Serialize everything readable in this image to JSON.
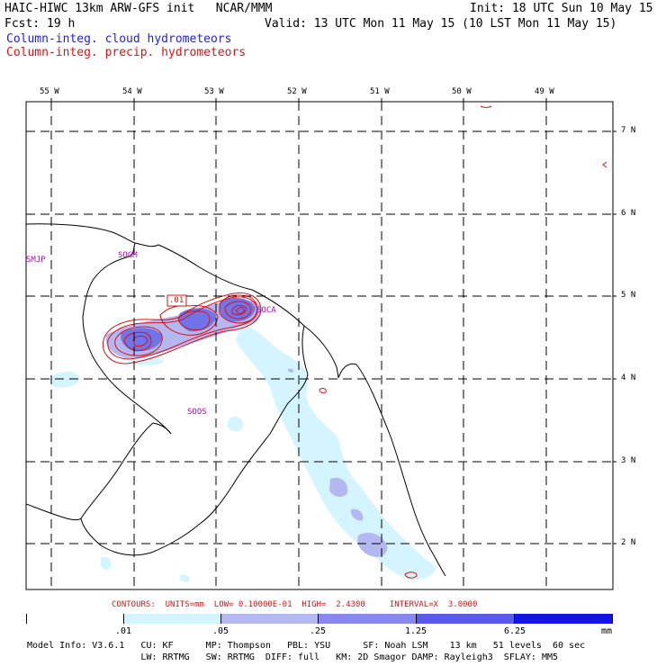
{
  "header": {
    "title_left": "HAIC-HIWC 13km ARW-GFS init   NCAR/MMM",
    "fcst_label": "Fcst:",
    "fcst_value": "19 h",
    "init": "Init: 18 UTC Sun 10 May 15",
    "valid": "Valid: 13 UTC Mon 11 May 15 (10 LST Mon 11 May 15)",
    "field_cloud": "Column-integ. cloud hydrometeors",
    "field_precip": "Column-integ. precip. hydrometeors"
  },
  "colors": {
    "cloud_text": "#1e1ee6",
    "precip_text": "#e01010",
    "station": "#c000c0",
    "fill_levels": [
      "#ffffff",
      "#d4f4ff",
      "#b4b8f0",
      "#8888ee",
      "#5a5ae8",
      "#3434e8",
      "#1414e6"
    ]
  },
  "map": {
    "lon_labels": [
      "55 W",
      "54 W",
      "53 W",
      "52 W",
      "51 W",
      "50 W",
      "49 W"
    ],
    "lat_labels": [
      "7 N",
      "6 N",
      "5 N",
      "4 N",
      "3 N",
      "2 N"
    ],
    "stations": [
      "SMJP",
      "SOGM",
      "SOCA",
      "SOOS"
    ],
    "contour_label": ".01"
  },
  "contour_info": "CONTOURS:  UNITS=mm  LOW= 0.10000E-01  HIGH=  2.4300     INTERVAL=X  3.0000",
  "colorbar": {
    "labels": [
      ".01",
      ".05",
      ".25",
      "1.25",
      "6.25"
    ],
    "units": "mm"
  },
  "model_info": {
    "line1": "Model Info: V3.6.1   CU: KF      MP: Thompson   PBL: YSU      SF: Noah LSM    13 km   51 levels  60 sec",
    "line2": "                     LW: RRTMG   SW: RRTMG  DIFF: full   KM: 2D Smagor DAMP: Rayleigh3  SFLAY: MM5"
  }
}
